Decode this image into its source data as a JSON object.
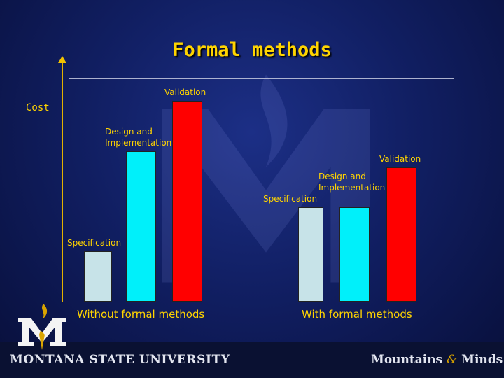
{
  "slide": {
    "title": "Formal methods",
    "footer_left": "MONTANA STATE UNIVERSITY",
    "footer_right_a": "Mountains",
    "footer_right_amp": "&",
    "footer_right_b": "Minds"
  },
  "chart_data": {
    "type": "bar",
    "title": "Formal methods",
    "ylabel": "Cost",
    "xlabel": "",
    "ylim": [
      0,
      100
    ],
    "grid": false,
    "categories": [
      "Without formal methods",
      "With formal methods"
    ],
    "series": [
      {
        "name": "Specification",
        "values": [
          25,
          47
        ],
        "color": "#c7e3e8"
      },
      {
        "name": "Design and\nImplementation",
        "values": [
          75,
          47
        ],
        "color": "#00f0fa"
      },
      {
        "name": "Validation",
        "values": [
          100,
          67
        ],
        "color": "#ff0000"
      }
    ]
  }
}
